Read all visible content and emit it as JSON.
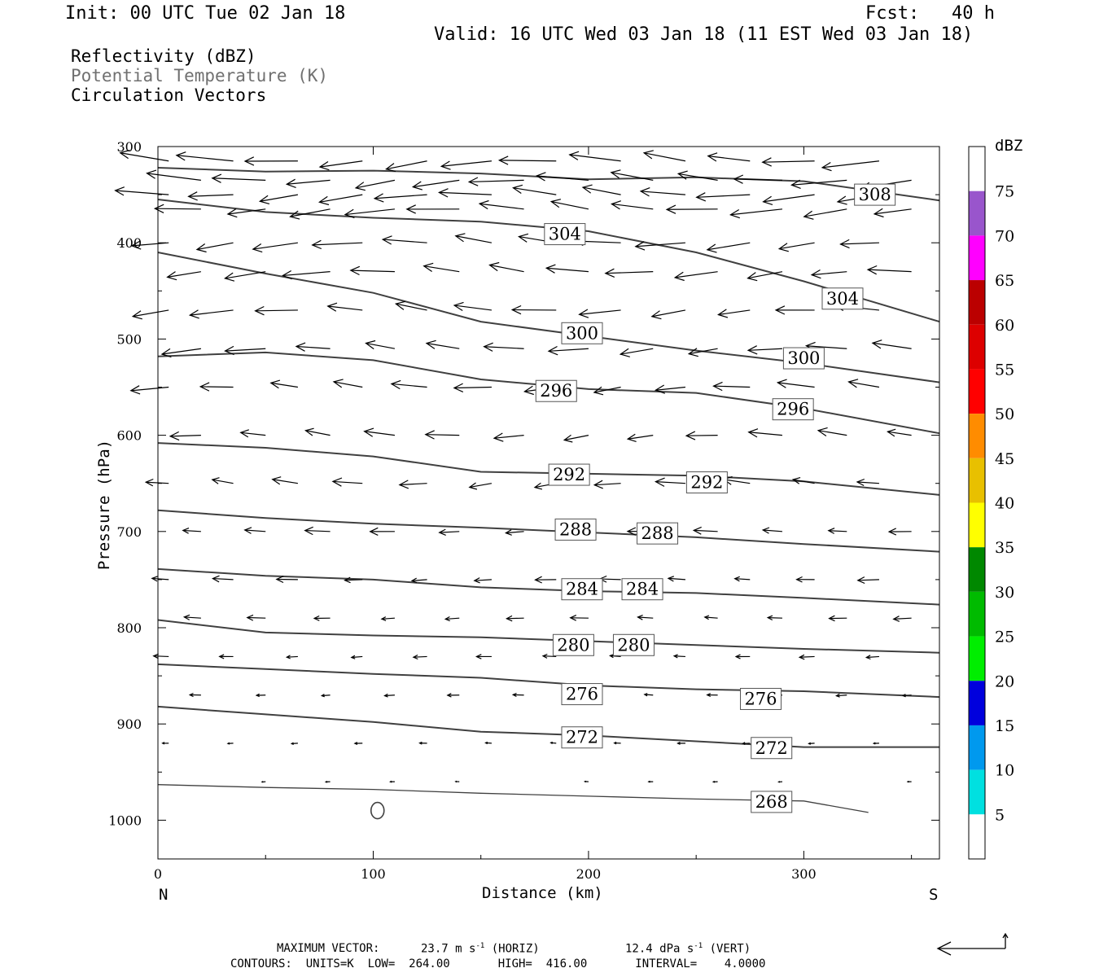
{
  "header": {
    "init": "Init: 00 UTC Tue 02 Jan 18",
    "fcst": "Fcst:   40 h",
    "valid": "Valid: 16 UTC Wed 03 Jan 18 (11 EST Wed 03 Jan 18)"
  },
  "legend": {
    "line1": "Reflectivity (dBZ)",
    "line2": "Potential Temperature (K)",
    "line3": "Circulation Vectors"
  },
  "footer": {
    "max_vector_label": "MAXIMUM VECTOR:",
    "horiz": "23.7 m s",
    "horiz_suffix": "(HORIZ)",
    "vert": "12.4 dPa s",
    "vert_suffix": "(VERT)",
    "contours": "CONTOURS:  UNITS=K  LOW=  264.00       HIGH=  416.00       INTERVAL=    4.0000"
  },
  "colors": {
    "contour": "#404040",
    "vector": "#000000",
    "muted_text": "#707070"
  },
  "chart_data": {
    "type": "line",
    "xlabel": "Distance (km)",
    "ylabel": "Pressure (hPa)",
    "xlim": [
      0,
      363
    ],
    "ylim": [
      300,
      1040
    ],
    "y_inverted": true,
    "x_ticks": [
      0,
      100,
      200,
      300
    ],
    "y_ticks": [
      300,
      400,
      500,
      600,
      700,
      800,
      900,
      1000
    ],
    "x_end_labels": {
      "left": "N",
      "right": "S"
    },
    "colorbar": {
      "title": "dBZ",
      "labels": [
        "5",
        "10",
        "15",
        "20",
        "25",
        "30",
        "35",
        "40",
        "45",
        "50",
        "55",
        "60",
        "65",
        "70",
        "75"
      ],
      "colors": [
        "#ffffff",
        "#00e0e0",
        "#0099ee",
        "#0000dd",
        "#00ee00",
        "#00bb00",
        "#008800",
        "#ffff00",
        "#e8c000",
        "#ff8c00",
        "#ff0000",
        "#dd0000",
        "#bb0000",
        "#ff00ff",
        "#9955cc",
        "#ffffff"
      ]
    },
    "series": [
      {
        "name": "308",
        "x": [
          0,
          50,
          100,
          150,
          200,
          250,
          300,
          363
        ],
        "y": [
          322,
          326,
          325,
          328,
          334,
          332,
          336,
          356
        ]
      },
      {
        "name": "304",
        "x": [
          0,
          50,
          100,
          150,
          200,
          250,
          300,
          363
        ],
        "y": [
          355,
          368,
          374,
          378,
          388,
          410,
          440,
          482
        ]
      },
      {
        "name": "300",
        "x": [
          0,
          50,
          100,
          150,
          200,
          250,
          300,
          363
        ],
        "y": [
          410,
          432,
          452,
          482,
          497,
          512,
          525,
          545
        ]
      },
      {
        "name": "296",
        "x": [
          0,
          50,
          100,
          150,
          200,
          250,
          300,
          363
        ],
        "y": [
          518,
          514,
          522,
          542,
          552,
          556,
          572,
          598
        ]
      },
      {
        "name": "292",
        "x": [
          0,
          50,
          100,
          150,
          200,
          250,
          300,
          363
        ],
        "y": [
          608,
          613,
          622,
          638,
          640,
          642,
          648,
          662
        ]
      },
      {
        "name": "288",
        "x": [
          0,
          50,
          100,
          150,
          200,
          250,
          300,
          363
        ],
        "y": [
          678,
          686,
          692,
          696,
          701,
          706,
          713,
          721
        ]
      },
      {
        "name": "284",
        "x": [
          0,
          50,
          100,
          150,
          200,
          250,
          300,
          363
        ],
        "y": [
          739,
          746,
          750,
          758,
          762,
          764,
          769,
          776
        ]
      },
      {
        "name": "280",
        "x": [
          0,
          50,
          100,
          150,
          200,
          250,
          300,
          363
        ],
        "y": [
          792,
          805,
          808,
          810,
          814,
          818,
          822,
          826
        ]
      },
      {
        "name": "276",
        "x": [
          0,
          50,
          100,
          150,
          200,
          250,
          300,
          363
        ],
        "y": [
          838,
          843,
          848,
          852,
          860,
          864,
          866,
          872
        ]
      },
      {
        "name": "272",
        "x": [
          0,
          50,
          100,
          150,
          200,
          250,
          300,
          363
        ],
        "y": [
          882,
          890,
          898,
          908,
          912,
          918,
          924,
          924
        ]
      },
      {
        "name": "268",
        "x": [
          0,
          50,
          100,
          150,
          200,
          250,
          300,
          330
        ],
        "y": [
          963,
          966,
          968,
          972,
          975,
          978,
          980,
          992
        ]
      }
    ],
    "contour_labels": [
      {
        "text": "308",
        "x": 333,
        "p": 350
      },
      {
        "text": "304",
        "x": 189,
        "p": 391
      },
      {
        "text": "304",
        "x": 318,
        "p": 458
      },
      {
        "text": "300",
        "x": 197,
        "p": 494
      },
      {
        "text": "300",
        "x": 300,
        "p": 520
      },
      {
        "text": "296",
        "x": 185,
        "p": 554
      },
      {
        "text": "296",
        "x": 295,
        "p": 573
      },
      {
        "text": "292",
        "x": 191,
        "p": 641
      },
      {
        "text": "292",
        "x": 255,
        "p": 649
      },
      {
        "text": "288",
        "x": 194,
        "p": 698
      },
      {
        "text": "288",
        "x": 232,
        "p": 702
      },
      {
        "text": "284",
        "x": 197,
        "p": 760
      },
      {
        "text": "284",
        "x": 225,
        "p": 760
      },
      {
        "text": "280",
        "x": 193,
        "p": 818
      },
      {
        "text": "280",
        "x": 221,
        "p": 818
      },
      {
        "text": "276",
        "x": 197,
        "p": 869
      },
      {
        "text": "276",
        "x": 280,
        "p": 874
      },
      {
        "text": "272",
        "x": 197,
        "p": 914
      },
      {
        "text": "272",
        "x": 285,
        "p": 925
      },
      {
        "text": "268",
        "x": 285,
        "p": 981
      }
    ]
  }
}
